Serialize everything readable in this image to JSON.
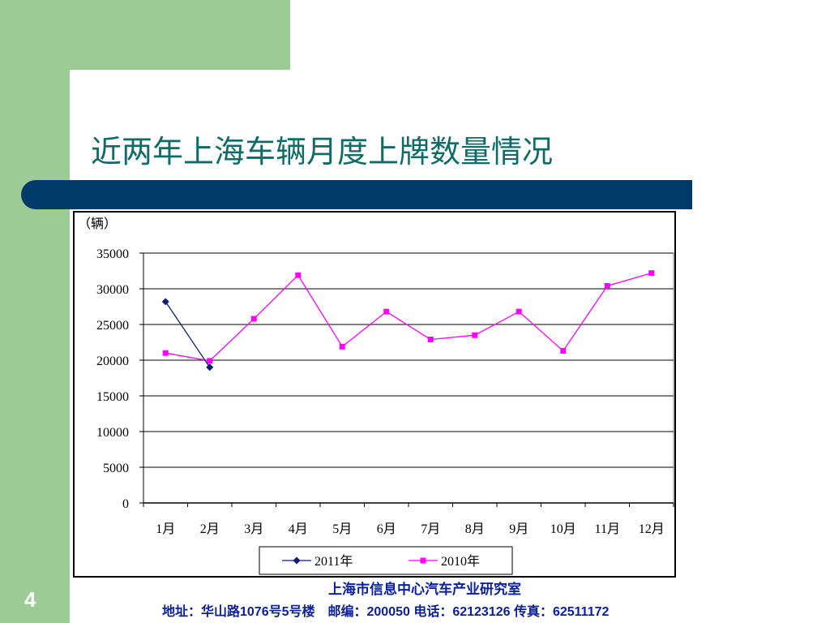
{
  "slide": {
    "title": "近两年上海车辆月度上牌数量情况",
    "page_number": "4",
    "footer_org": "上海市信息中心汽车产业研究室",
    "footer_address": "地址：华山路1076号5号楼　邮编：200050  电话：62123126  传真：62511172"
  },
  "colors": {
    "green": "#9dcb95",
    "navy_bar": "#003a6b",
    "title_text": "#0e6b67",
    "footer_text": "#0a1f9c",
    "series_2011": "#0a1f6e",
    "series_2010": "#ff00ff"
  },
  "chart_data": {
    "type": "line",
    "unit_label": "（辆）",
    "categories": [
      "1月",
      "2月",
      "3月",
      "4月",
      "5月",
      "6月",
      "7月",
      "8月",
      "9月",
      "10月",
      "11月",
      "12月"
    ],
    "y_ticks": [
      "0",
      "5000",
      "10000",
      "15000",
      "20000",
      "25000",
      "30000",
      "35000"
    ],
    "ylim": [
      0,
      35000
    ],
    "grid": true,
    "legend_position": "bottom",
    "series": [
      {
        "name": "2011年",
        "marker": "diamond",
        "color": "#0a1f6e",
        "values": [
          28200,
          19000,
          null,
          null,
          null,
          null,
          null,
          null,
          null,
          null,
          null,
          null
        ]
      },
      {
        "name": "2010年",
        "marker": "square",
        "color": "#ff00ff",
        "values": [
          21000,
          19900,
          25800,
          31900,
          21900,
          26800,
          22900,
          23500,
          26800,
          21300,
          30400,
          32200
        ]
      }
    ]
  }
}
